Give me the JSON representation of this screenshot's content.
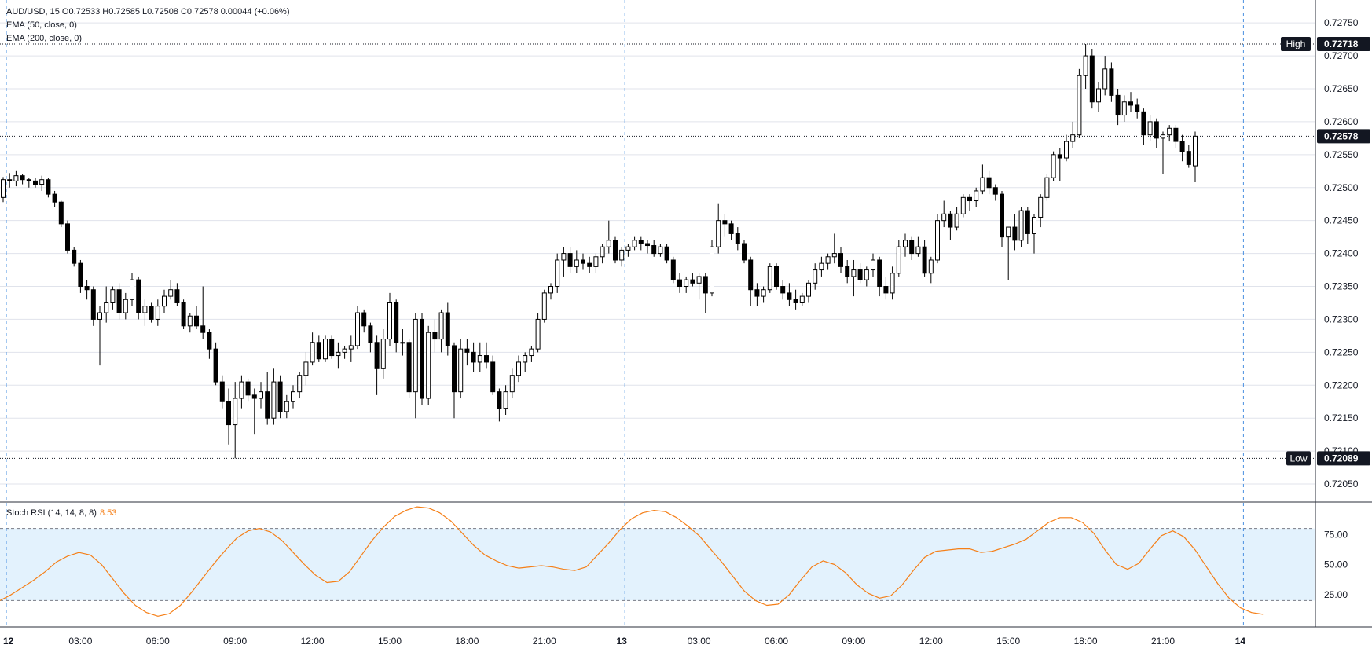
{
  "header": {
    "symbol_line": "AUD/USD, 15  O0.72533  H0.72585  L0.72508  C0.72578  0.00044 (+0.06%)",
    "ema50": "EMA (50, close, 0)",
    "ema200": "EMA (200, close, 0)"
  },
  "markers": {
    "high_label": "High",
    "high_value": "0.72718",
    "low_label": "Low",
    "low_value": "0.72089",
    "last_value": "0.72578"
  },
  "price_axis": {
    "min": 0.72025,
    "max": 0.7278,
    "ticks": [
      "0.72750",
      "0.72700",
      "0.72650",
      "0.72600",
      "0.72550",
      "0.72500",
      "0.72450",
      "0.72400",
      "0.72350",
      "0.72300",
      "0.72250",
      "0.72200",
      "0.72150",
      "0.72100",
      "0.72050"
    ]
  },
  "time_axis": {
    "labels": [
      {
        "text": "12",
        "bold": true,
        "index": 0
      },
      {
        "text": "03:00",
        "bold": false,
        "index": 12
      },
      {
        "text": "06:00",
        "bold": false,
        "index": 24
      },
      {
        "text": "09:00",
        "bold": false,
        "index": 36
      },
      {
        "text": "12:00",
        "bold": false,
        "index": 48
      },
      {
        "text": "15:00",
        "bold": false,
        "index": 60
      },
      {
        "text": "18:00",
        "bold": false,
        "index": 72
      },
      {
        "text": "21:00",
        "bold": false,
        "index": 84
      },
      {
        "text": "13",
        "bold": true,
        "index": 96
      },
      {
        "text": "03:00",
        "bold": false,
        "index": 108
      },
      {
        "text": "06:00",
        "bold": false,
        "index": 120
      },
      {
        "text": "09:00",
        "bold": false,
        "index": 132
      },
      {
        "text": "12:00",
        "bold": false,
        "index": 144
      },
      {
        "text": "15:00",
        "bold": false,
        "index": 156
      },
      {
        "text": "18:00",
        "bold": false,
        "index": 168
      },
      {
        "text": "21:00",
        "bold": false,
        "index": 180
      },
      {
        "text": "14",
        "bold": true,
        "index": 192
      }
    ]
  },
  "stoch_rsi": {
    "label": "Stoch RSI (14, 14, 8, 8)",
    "value": "8.53",
    "ticks": [
      "75.00",
      "50.00",
      "25.00"
    ],
    "upper_band": 80,
    "lower_band": 20,
    "min": 0,
    "max": 100,
    "color": "#f57f17",
    "band_fill": "#e3f2fd"
  },
  "colors": {
    "bull_body": "#ffffff",
    "bear_body": "#000000",
    "wick": "#000000",
    "grid": "#e0e3eb",
    "divider": "#4a90e2"
  },
  "chart_data": {
    "type": "candlestick",
    "title": "AUD/USD, 15",
    "interval": "15",
    "x_start": "12 00:00",
    "ylim": [
      0.72025,
      0.7278
    ],
    "candles": [
      [
        0.72485,
        0.72516,
        0.72478,
        0.72512
      ],
      [
        0.72512,
        0.72522,
        0.725,
        0.7251
      ],
      [
        0.7251,
        0.72525,
        0.72502,
        0.72518
      ],
      [
        0.72518,
        0.7252,
        0.72505,
        0.72512
      ],
      [
        0.72512,
        0.72515,
        0.725,
        0.7251
      ],
      [
        0.7251,
        0.72515,
        0.725,
        0.72505
      ],
      [
        0.72505,
        0.72518,
        0.72495,
        0.72512
      ],
      [
        0.72512,
        0.72515,
        0.72485,
        0.7249
      ],
      [
        0.7249,
        0.72495,
        0.7247,
        0.72478
      ],
      [
        0.72478,
        0.7248,
        0.7244,
        0.72445
      ],
      [
        0.72445,
        0.7245,
        0.724,
        0.72405
      ],
      [
        0.72405,
        0.7241,
        0.7238,
        0.72385
      ],
      [
        0.72385,
        0.7239,
        0.7234,
        0.7235
      ],
      [
        0.7235,
        0.7236,
        0.7233,
        0.72345
      ],
      [
        0.72345,
        0.7235,
        0.7229,
        0.723
      ],
      [
        0.723,
        0.7232,
        0.7223,
        0.7231
      ],
      [
        0.7231,
        0.7235,
        0.72295,
        0.72325
      ],
      [
        0.72325,
        0.7235,
        0.72315,
        0.72345
      ],
      [
        0.72345,
        0.72355,
        0.723,
        0.7231
      ],
      [
        0.7231,
        0.7234,
        0.723,
        0.7233
      ],
      [
        0.7233,
        0.7237,
        0.7232,
        0.7236
      ],
      [
        0.7236,
        0.72365,
        0.723,
        0.7231
      ],
      [
        0.7231,
        0.7233,
        0.7229,
        0.7232
      ],
      [
        0.7232,
        0.72325,
        0.72295,
        0.723
      ],
      [
        0.723,
        0.7233,
        0.7229,
        0.7232
      ],
      [
        0.7232,
        0.72345,
        0.7231,
        0.72335
      ],
      [
        0.72335,
        0.7236,
        0.7233,
        0.72345
      ],
      [
        0.72345,
        0.72355,
        0.7232,
        0.72325
      ],
      [
        0.72325,
        0.7233,
        0.72285,
        0.7229
      ],
      [
        0.7229,
        0.7231,
        0.7228,
        0.72305
      ],
      [
        0.72305,
        0.7232,
        0.72285,
        0.7229
      ],
      [
        0.7229,
        0.7235,
        0.7227,
        0.7228
      ],
      [
        0.7228,
        0.72285,
        0.7224,
        0.72255
      ],
      [
        0.72255,
        0.72265,
        0.722,
        0.72205
      ],
      [
        0.72205,
        0.72215,
        0.72165,
        0.72175
      ],
      [
        0.72175,
        0.72195,
        0.7211,
        0.7214
      ],
      [
        0.7214,
        0.72205,
        0.72089,
        0.7218
      ],
      [
        0.7218,
        0.72215,
        0.72165,
        0.72205
      ],
      [
        0.72205,
        0.7221,
        0.72175,
        0.72185
      ],
      [
        0.72185,
        0.72195,
        0.72125,
        0.7218
      ],
      [
        0.7218,
        0.72205,
        0.72165,
        0.7219
      ],
      [
        0.7219,
        0.7222,
        0.7214,
        0.7215
      ],
      [
        0.7215,
        0.72225,
        0.7214,
        0.72205
      ],
      [
        0.72205,
        0.72215,
        0.7215,
        0.7216
      ],
      [
        0.7216,
        0.72185,
        0.7215,
        0.72175
      ],
      [
        0.72175,
        0.722,
        0.72165,
        0.7219
      ],
      [
        0.7219,
        0.7222,
        0.7218,
        0.72215
      ],
      [
        0.72215,
        0.7225,
        0.722,
        0.72235
      ],
      [
        0.72235,
        0.7228,
        0.7223,
        0.72265
      ],
      [
        0.72265,
        0.72275,
        0.72235,
        0.7224
      ],
      [
        0.7224,
        0.72275,
        0.72235,
        0.7227
      ],
      [
        0.7227,
        0.72275,
        0.7224,
        0.72245
      ],
      [
        0.72245,
        0.72265,
        0.72225,
        0.7225
      ],
      [
        0.7225,
        0.7226,
        0.7224,
        0.72255
      ],
      [
        0.72255,
        0.72275,
        0.72235,
        0.7226
      ],
      [
        0.7226,
        0.7232,
        0.72255,
        0.7231
      ],
      [
        0.7231,
        0.72315,
        0.7228,
        0.7229
      ],
      [
        0.7229,
        0.72295,
        0.7225,
        0.72265
      ],
      [
        0.72265,
        0.72275,
        0.72185,
        0.72225
      ],
      [
        0.72225,
        0.72285,
        0.7221,
        0.7227
      ],
      [
        0.7227,
        0.7234,
        0.7226,
        0.72325
      ],
      [
        0.72325,
        0.7233,
        0.7225,
        0.72265
      ],
      [
        0.72265,
        0.72285,
        0.72245,
        0.72265
      ],
      [
        0.72265,
        0.7227,
        0.7218,
        0.7219
      ],
      [
        0.7219,
        0.7231,
        0.7215,
        0.723
      ],
      [
        0.723,
        0.7231,
        0.7217,
        0.7218
      ],
      [
        0.7218,
        0.7229,
        0.7217,
        0.7228
      ],
      [
        0.7228,
        0.723,
        0.7225,
        0.7227
      ],
      [
        0.7227,
        0.72315,
        0.7225,
        0.7231
      ],
      [
        0.7231,
        0.72325,
        0.72245,
        0.7226
      ],
      [
        0.7226,
        0.72265,
        0.7215,
        0.7219
      ],
      [
        0.7219,
        0.7227,
        0.7218,
        0.72255
      ],
      [
        0.72255,
        0.7227,
        0.7223,
        0.7225
      ],
      [
        0.7225,
        0.72265,
        0.7222,
        0.72235
      ],
      [
        0.72235,
        0.72265,
        0.7222,
        0.72245
      ],
      [
        0.72245,
        0.72265,
        0.72225,
        0.72235
      ],
      [
        0.72235,
        0.72245,
        0.72185,
        0.7219
      ],
      [
        0.7219,
        0.72195,
        0.72145,
        0.72165
      ],
      [
        0.72165,
        0.722,
        0.72155,
        0.7219
      ],
      [
        0.7219,
        0.72225,
        0.7218,
        0.72215
      ],
      [
        0.72215,
        0.72245,
        0.72205,
        0.72235
      ],
      [
        0.72235,
        0.7225,
        0.7222,
        0.72245
      ],
      [
        0.72245,
        0.7226,
        0.72235,
        0.72255
      ],
      [
        0.72255,
        0.7231,
        0.7225,
        0.723
      ],
      [
        0.723,
        0.72345,
        0.72295,
        0.7234
      ],
      [
        0.7234,
        0.72355,
        0.7233,
        0.7235
      ],
      [
        0.7235,
        0.724,
        0.7234,
        0.7239
      ],
      [
        0.7239,
        0.7241,
        0.72365,
        0.724
      ],
      [
        0.724,
        0.7241,
        0.7237,
        0.7238
      ],
      [
        0.7238,
        0.72405,
        0.7237,
        0.7239
      ],
      [
        0.7239,
        0.724,
        0.72375,
        0.72385
      ],
      [
        0.72385,
        0.72395,
        0.7237,
        0.7238
      ],
      [
        0.7238,
        0.724,
        0.7237,
        0.72395
      ],
      [
        0.72395,
        0.72415,
        0.72385,
        0.7241
      ],
      [
        0.7241,
        0.7245,
        0.724,
        0.7242
      ],
      [
        0.7242,
        0.72425,
        0.72385,
        0.7239
      ],
      [
        0.7239,
        0.7241,
        0.7238,
        0.72405
      ],
      [
        0.72405,
        0.72415,
        0.72395,
        0.7241
      ],
      [
        0.7241,
        0.72425,
        0.72405,
        0.7242
      ],
      [
        0.7242,
        0.72425,
        0.72405,
        0.72415
      ],
      [
        0.72415,
        0.7242,
        0.724,
        0.72412
      ],
      [
        0.72412,
        0.7242,
        0.72395,
        0.724
      ],
      [
        0.724,
        0.72415,
        0.72395,
        0.7241
      ],
      [
        0.7241,
        0.72415,
        0.72385,
        0.7239
      ],
      [
        0.7239,
        0.72395,
        0.72355,
        0.7236
      ],
      [
        0.7236,
        0.7237,
        0.7234,
        0.7235
      ],
      [
        0.7235,
        0.72365,
        0.7234,
        0.7236
      ],
      [
        0.7236,
        0.7237,
        0.7235,
        0.72355
      ],
      [
        0.72355,
        0.7237,
        0.7233,
        0.72365
      ],
      [
        0.72365,
        0.7237,
        0.7231,
        0.7234
      ],
      [
        0.7234,
        0.7242,
        0.72335,
        0.7241
      ],
      [
        0.7241,
        0.72475,
        0.724,
        0.7245
      ],
      [
        0.7245,
        0.7246,
        0.72425,
        0.72445
      ],
      [
        0.72445,
        0.7245,
        0.7242,
        0.7243
      ],
      [
        0.7243,
        0.7244,
        0.72405,
        0.72415
      ],
      [
        0.72415,
        0.7242,
        0.72385,
        0.7239
      ],
      [
        0.7239,
        0.72395,
        0.7232,
        0.72345
      ],
      [
        0.72345,
        0.72355,
        0.7232,
        0.72335
      ],
      [
        0.72335,
        0.7235,
        0.72325,
        0.72345
      ],
      [
        0.72345,
        0.72385,
        0.7234,
        0.7238
      ],
      [
        0.7238,
        0.72385,
        0.72345,
        0.7235
      ],
      [
        0.7235,
        0.7236,
        0.7233,
        0.7234
      ],
      [
        0.7234,
        0.72355,
        0.7232,
        0.7233
      ],
      [
        0.7233,
        0.72345,
        0.72315,
        0.72325
      ],
      [
        0.72325,
        0.7234,
        0.7232,
        0.72335
      ],
      [
        0.72335,
        0.7236,
        0.72325,
        0.72355
      ],
      [
        0.72355,
        0.72385,
        0.72345,
        0.72375
      ],
      [
        0.72375,
        0.72395,
        0.72365,
        0.72385
      ],
      [
        0.72385,
        0.724,
        0.72375,
        0.72395
      ],
      [
        0.72395,
        0.7243,
        0.72385,
        0.724
      ],
      [
        0.724,
        0.7241,
        0.7237,
        0.7238
      ],
      [
        0.7238,
        0.7239,
        0.72355,
        0.72365
      ],
      [
        0.72365,
        0.7239,
        0.72335,
        0.72375
      ],
      [
        0.72375,
        0.72385,
        0.72355,
        0.7236
      ],
      [
        0.7236,
        0.7238,
        0.7235,
        0.72375
      ],
      [
        0.72375,
        0.724,
        0.72365,
        0.7239
      ],
      [
        0.7239,
        0.72395,
        0.72335,
        0.7235
      ],
      [
        0.7235,
        0.72365,
        0.7233,
        0.7234
      ],
      [
        0.7234,
        0.7238,
        0.7233,
        0.7237
      ],
      [
        0.7237,
        0.7242,
        0.72365,
        0.7241
      ],
      [
        0.7241,
        0.7243,
        0.72395,
        0.7242
      ],
      [
        0.7242,
        0.72425,
        0.7239,
        0.724
      ],
      [
        0.724,
        0.72425,
        0.72395,
        0.7241
      ],
      [
        0.7241,
        0.7242,
        0.72365,
        0.7237
      ],
      [
        0.7237,
        0.72395,
        0.72355,
        0.7239
      ],
      [
        0.7239,
        0.7246,
        0.72385,
        0.7245
      ],
      [
        0.7245,
        0.7248,
        0.7244,
        0.7246
      ],
      [
        0.7246,
        0.72465,
        0.7242,
        0.7244
      ],
      [
        0.7244,
        0.7247,
        0.72435,
        0.7246
      ],
      [
        0.7246,
        0.7249,
        0.72455,
        0.72485
      ],
      [
        0.72485,
        0.7249,
        0.72465,
        0.7248
      ],
      [
        0.7248,
        0.725,
        0.7247,
        0.72495
      ],
      [
        0.72495,
        0.72535,
        0.7249,
        0.72515
      ],
      [
        0.72515,
        0.72525,
        0.7249,
        0.725
      ],
      [
        0.725,
        0.72505,
        0.7248,
        0.7249
      ],
      [
        0.7249,
        0.72495,
        0.7241,
        0.72425
      ],
      [
        0.72425,
        0.7244,
        0.7236,
        0.7244
      ],
      [
        0.7244,
        0.7246,
        0.72405,
        0.7242
      ],
      [
        0.7242,
        0.7247,
        0.7241,
        0.72465
      ],
      [
        0.72465,
        0.7247,
        0.72415,
        0.7243
      ],
      [
        0.7243,
        0.7246,
        0.724,
        0.72455
      ],
      [
        0.72455,
        0.7249,
        0.7244,
        0.72485
      ],
      [
        0.72485,
        0.7252,
        0.7248,
        0.72515
      ],
      [
        0.72515,
        0.72555,
        0.7251,
        0.7255
      ],
      [
        0.7255,
        0.7256,
        0.7251,
        0.72545
      ],
      [
        0.72545,
        0.7258,
        0.7254,
        0.7257
      ],
      [
        0.7257,
        0.726,
        0.7256,
        0.7258
      ],
      [
        0.7258,
        0.7268,
        0.72575,
        0.7267
      ],
      [
        0.7267,
        0.72718,
        0.7265,
        0.727
      ],
      [
        0.727,
        0.7271,
        0.7262,
        0.7263
      ],
      [
        0.7263,
        0.7266,
        0.72615,
        0.7265
      ],
      [
        0.7265,
        0.727,
        0.7264,
        0.7268
      ],
      [
        0.7268,
        0.7269,
        0.7263,
        0.7264
      ],
      [
        0.7264,
        0.7265,
        0.72595,
        0.7261
      ],
      [
        0.7261,
        0.7264,
        0.726,
        0.7263
      ],
      [
        0.7263,
        0.72645,
        0.72615,
        0.72625
      ],
      [
        0.72625,
        0.72635,
        0.72605,
        0.72615
      ],
      [
        0.72615,
        0.7262,
        0.72565,
        0.7258
      ],
      [
        0.7258,
        0.7261,
        0.7257,
        0.726
      ],
      [
        0.726,
        0.72605,
        0.7256,
        0.72575
      ],
      [
        0.72575,
        0.72585,
        0.7252,
        0.7258
      ],
      [
        0.7258,
        0.72595,
        0.7257,
        0.7259
      ],
      [
        0.7259,
        0.72595,
        0.7256,
        0.7257
      ],
      [
        0.7257,
        0.7258,
        0.7254,
        0.72555
      ],
      [
        0.72555,
        0.72565,
        0.7253,
        0.72535
      ],
      [
        0.72533,
        0.72585,
        0.72508,
        0.72578
      ]
    ],
    "stoch_rsi_k": [
      20,
      25,
      31,
      37,
      44,
      52,
      57,
      60,
      58,
      50,
      38,
      26,
      16,
      10,
      7,
      9,
      16,
      27,
      39,
      51,
      62,
      72,
      78,
      80,
      77,
      70,
      60,
      50,
      41,
      35,
      36,
      44,
      57,
      70,
      81,
      90,
      95,
      98,
      97,
      93,
      86,
      76,
      66,
      58,
      53,
      49,
      47,
      48,
      49,
      48,
      46,
      45,
      48,
      58,
      68,
      79,
      88,
      93,
      95,
      94,
      89,
      82,
      74,
      63,
      52,
      40,
      28,
      20,
      16,
      17,
      25,
      37,
      48,
      53,
      50,
      43,
      33,
      26,
      22,
      24,
      33,
      45,
      56,
      61,
      62,
      63,
      63,
      60,
      61,
      64,
      67,
      71,
      78,
      85,
      89,
      89,
      85,
      76,
      62,
      50,
      46,
      51,
      63,
      74,
      78,
      73,
      62,
      48,
      34,
      22,
      14,
      10,
      8.53
    ]
  }
}
